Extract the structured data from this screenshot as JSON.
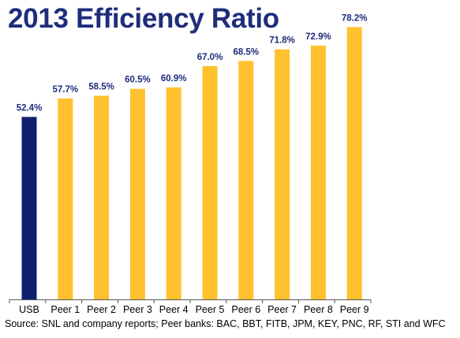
{
  "chart_data": {
    "type": "bar",
    "title": "2013 Efficiency Ratio",
    "categories": [
      "USB",
      "Peer 1",
      "Peer 2",
      "Peer 3",
      "Peer 4",
      "Peer 5",
      "Peer 6",
      "Peer 7",
      "Peer 8",
      "Peer 9"
    ],
    "values": [
      52.4,
      57.7,
      58.5,
      60.5,
      60.9,
      67.0,
      68.5,
      71.8,
      72.9,
      78.2
    ],
    "data_labels": [
      "52.4%",
      "57.7%",
      "58.5%",
      "60.5%",
      "60.9%",
      "67.0%",
      "68.5%",
      "71.8%",
      "72.9%",
      "78.2%"
    ],
    "xlabel": "",
    "ylabel": "",
    "ylim": [
      0,
      80
    ],
    "grid": false,
    "legend": "none",
    "colors": {
      "highlight": "#0f1f6e",
      "peer": "#ffc12e",
      "label": "#1f2d7b",
      "axis": "#555555"
    }
  },
  "footnote": "Source: SNL and company reports; Peer banks: BAC, BBT, FITB, JPM, KEY, PNC, RF, STI and WFC"
}
